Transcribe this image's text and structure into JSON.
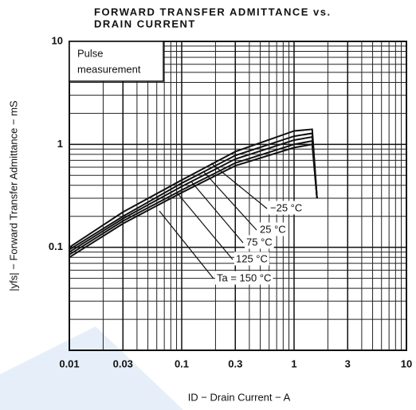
{
  "chart_data": {
    "type": "line",
    "title_lines": [
      "FORWARD TRANSFER ADMITTANCE vs.",
      "DRAIN CURRENT"
    ],
    "x_label": "ID − Drain Current − A",
    "y_label": "|yfs| − Forward Transfer Admittance − mS",
    "annotation_lines": [
      "Pulse",
      "measurement"
    ],
    "x": [
      0.01,
      0.03,
      0.1,
      0.3,
      1,
      1.45,
      1.6
    ],
    "series": [
      {
        "name": "−25 °C",
        "color": "#111",
        "values": [
          0.1,
          0.22,
          0.45,
          0.85,
          1.35,
          1.4,
          0.3
        ]
      },
      {
        "name": "25 °C",
        "color": "#111",
        "values": [
          0.095,
          0.2,
          0.42,
          0.78,
          1.2,
          1.28,
          0.3
        ]
      },
      {
        "name": "75 °C",
        "color": "#111",
        "values": [
          0.09,
          0.19,
          0.39,
          0.72,
          1.1,
          1.18,
          0.3
        ]
      },
      {
        "name": "125 °C",
        "color": "#111",
        "values": [
          0.085,
          0.18,
          0.36,
          0.66,
          1.0,
          1.08,
          0.3
        ]
      },
      {
        "name": "Ta = 150 °C",
        "color": "#111",
        "values": [
          0.08,
          0.17,
          0.34,
          0.62,
          0.93,
          1.0,
          0.3
        ]
      }
    ],
    "xlim": [
      0.01,
      10
    ],
    "ylim": [
      0.01,
      10
    ],
    "xticks": [
      0.01,
      0.03,
      0.1,
      0.3,
      1,
      3,
      10
    ],
    "yticks": [
      0.1,
      1,
      10
    ],
    "xscale": "log",
    "yscale": "log",
    "grid": true
  }
}
